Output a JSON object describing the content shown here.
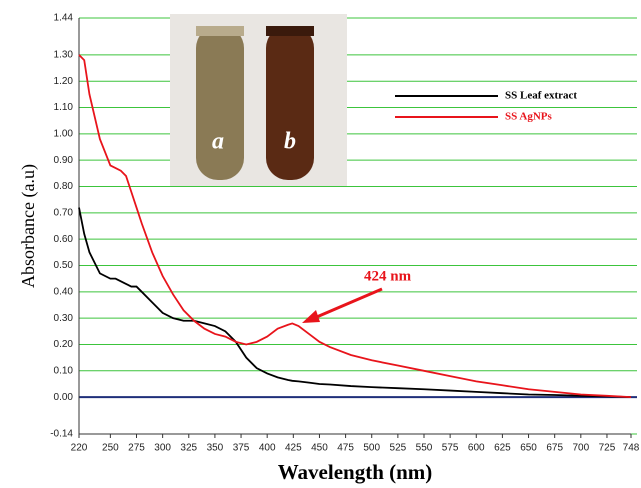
{
  "chart_data": {
    "type": "line",
    "xlabel": "Wavelength (nm)",
    "ylabel": "Absorbance (a.u)",
    "x": [
      220,
      225,
      230,
      240,
      250,
      255,
      260,
      265,
      270,
      275,
      280,
      290,
      300,
      310,
      320,
      330,
      340,
      350,
      360,
      370,
      380,
      390,
      400,
      410,
      420,
      424,
      430,
      440,
      450,
      460,
      480,
      500,
      525,
      550,
      575,
      600,
      625,
      650,
      675,
      700,
      725,
      748
    ],
    "series": [
      {
        "name": "SS Leaf extract",
        "color": "#000000",
        "values": [
          0.72,
          0.62,
          0.55,
          0.47,
          0.45,
          0.45,
          0.44,
          0.43,
          0.42,
          0.42,
          0.4,
          0.36,
          0.32,
          0.3,
          0.29,
          0.29,
          0.28,
          0.27,
          0.25,
          0.21,
          0.15,
          0.11,
          0.09,
          0.075,
          0.065,
          0.062,
          0.06,
          0.055,
          0.05,
          0.048,
          0.042,
          0.038,
          0.034,
          0.03,
          0.025,
          0.02,
          0.015,
          0.01,
          0.008,
          0.005,
          0.003,
          0.0
        ]
      },
      {
        "name": "SS AgNPs",
        "color": "#e8141b",
        "values": [
          1.3,
          1.28,
          1.15,
          0.98,
          0.88,
          0.87,
          0.86,
          0.84,
          0.78,
          0.72,
          0.66,
          0.55,
          0.46,
          0.39,
          0.33,
          0.29,
          0.26,
          0.24,
          0.23,
          0.21,
          0.2,
          0.21,
          0.23,
          0.26,
          0.275,
          0.28,
          0.27,
          0.24,
          0.21,
          0.19,
          0.16,
          0.14,
          0.12,
          0.1,
          0.08,
          0.06,
          0.045,
          0.03,
          0.02,
          0.01,
          0.005,
          0.0
        ]
      }
    ],
    "xlim": [
      220,
      748
    ],
    "xticks": [
      220,
      250,
      275,
      300,
      325,
      350,
      375,
      400,
      425,
      450,
      475,
      500,
      525,
      550,
      575,
      600,
      625,
      650,
      675,
      700,
      725,
      748
    ],
    "ylim": [
      -0.14,
      1.44
    ],
    "yticks": [
      -0.14,
      {
        "value": 0,
        "label": "0.00"
      },
      {
        "value": 0.1,
        "label": "0.10"
      },
      {
        "value": 0.2,
        "label": "0.20"
      },
      {
        "value": 0.3,
        "label": "0.30"
      },
      {
        "value": 0.4,
        "label": "0.40"
      },
      {
        "value": 0.5,
        "label": "0.50"
      },
      {
        "value": 0.6,
        "label": "0.60"
      },
      {
        "value": 0.7,
        "label": "0.70"
      },
      {
        "value": 0.8,
        "label": "0.80"
      },
      {
        "value": 0.9,
        "label": "0.90"
      },
      {
        "value": 1.0,
        "label": "1.00"
      },
      {
        "value": 1.1,
        "label": "1.10"
      },
      {
        "value": 1.2,
        "label": "1.20"
      },
      {
        "value": 1.3,
        "label": "1.30"
      },
      1.44
    ],
    "grid": true,
    "grid_color": "#3cc43c",
    "zero_line_color": "#1f2f7a",
    "legend": "upper right",
    "annotations": [
      "424 nm"
    ],
    "inset_labels": [
      "a",
      "b"
    ]
  }
}
